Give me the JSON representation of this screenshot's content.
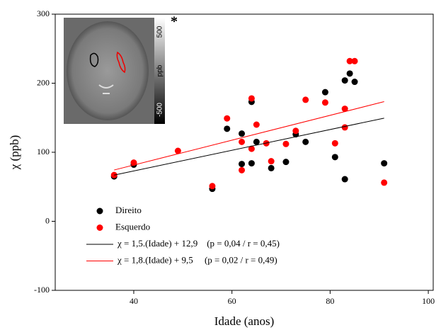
{
  "chart_data": {
    "type": "scatter",
    "x_label": "Idade (anos)",
    "y_label": "χ (ppb)",
    "xlim": [
      24,
      101
    ],
    "ylim": [
      -100,
      300
    ],
    "xticks": [
      40,
      60,
      80,
      100
    ],
    "yticks": [
      -100,
      0,
      100,
      200,
      300
    ],
    "series": [
      {
        "name": "Direito",
        "type": "scatter",
        "color": "#000000",
        "x": [
          36,
          40,
          56,
          59,
          62,
          62,
          64,
          64,
          65,
          68,
          71,
          73,
          75,
          79,
          81,
          83,
          83,
          84,
          85,
          91
        ],
        "values": [
          65,
          82,
          47,
          134,
          127,
          83,
          173,
          84,
          115,
          77,
          86,
          126,
          115,
          187,
          93,
          204,
          61,
          214,
          202,
          84
        ]
      },
      {
        "name": "Esquerdo",
        "type": "scatter",
        "color": "#ff0000",
        "x": [
          36,
          40,
          49,
          56,
          59,
          62,
          62,
          64,
          64,
          65,
          67,
          68,
          71,
          73,
          75,
          79,
          81,
          83,
          83,
          84,
          85,
          91
        ],
        "values": [
          67,
          85,
          102,
          51,
          149,
          74,
          115,
          105,
          178,
          140,
          113,
          87,
          112,
          131,
          176,
          172,
          113,
          163,
          136,
          232,
          232,
          56
        ]
      },
      {
        "name": "χ = 1,5.(Idade) + 12,9    (p = 0,04 / r = 0,45)",
        "type": "line",
        "color": "#000000",
        "x": [
          36,
          91
        ],
        "values": [
          66.9,
          149.4
        ]
      },
      {
        "name": "χ = 1,8.(Idade) + 9,5     (p = 0,02 / r = 0,49)",
        "type": "line",
        "color": "#ff0000",
        "x": [
          36,
          91
        ],
        "values": [
          74.3,
          173.3
        ]
      }
    ]
  },
  "inset": {
    "colorbar_top": "500",
    "colorbar_label": "ppb",
    "colorbar_bottom": "-500",
    "marker": "*"
  }
}
